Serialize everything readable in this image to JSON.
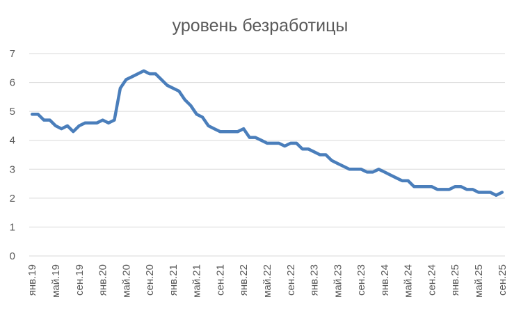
{
  "chart_data": {
    "type": "line",
    "title": "уровень безработицы",
    "xlabel": "",
    "ylabel": "",
    "ylim": [
      0,
      7
    ],
    "yticks": [
      0,
      1,
      2,
      3,
      4,
      5,
      6,
      7
    ],
    "grid": true,
    "legend": "none",
    "x_tick_labels": [
      "янв.19",
      "май.19",
      "сен.19",
      "янв.20",
      "май.20",
      "сен.20",
      "янв.21",
      "май.21",
      "сен.21",
      "янв.22",
      "май.22",
      "сен.22",
      "янв.23",
      "май.23",
      "сен.23",
      "янв.24",
      "май.24",
      "сен.24",
      "янв.25",
      "май.25",
      "сен.25"
    ],
    "x_start": "2019-01",
    "x_end": "2025-09",
    "series": [
      {
        "color": "#4a7ebb",
        "values": [
          4.9,
          4.9,
          4.7,
          4.7,
          4.5,
          4.4,
          4.5,
          4.3,
          4.5,
          4.6,
          4.6,
          4.6,
          4.7,
          4.6,
          4.7,
          5.8,
          6.1,
          6.2,
          6.3,
          6.4,
          6.3,
          6.3,
          6.1,
          5.9,
          5.8,
          5.7,
          5.4,
          5.2,
          4.9,
          4.8,
          4.5,
          4.4,
          4.3,
          4.3,
          4.3,
          4.3,
          4.4,
          4.1,
          4.1,
          4.0,
          3.9,
          3.9,
          3.9,
          3.8,
          3.9,
          3.9,
          3.7,
          3.7,
          3.6,
          3.5,
          3.5,
          3.3,
          3.2,
          3.1,
          3.0,
          3.0,
          3.0,
          2.9,
          2.9,
          3.0,
          2.9,
          2.8,
          2.7,
          2.6,
          2.6,
          2.4,
          2.4,
          2.4,
          2.4,
          2.3,
          2.3,
          2.3,
          2.4,
          2.4,
          2.3,
          2.3,
          2.2,
          2.2,
          2.2,
          2.1,
          2.2
        ]
      }
    ]
  }
}
